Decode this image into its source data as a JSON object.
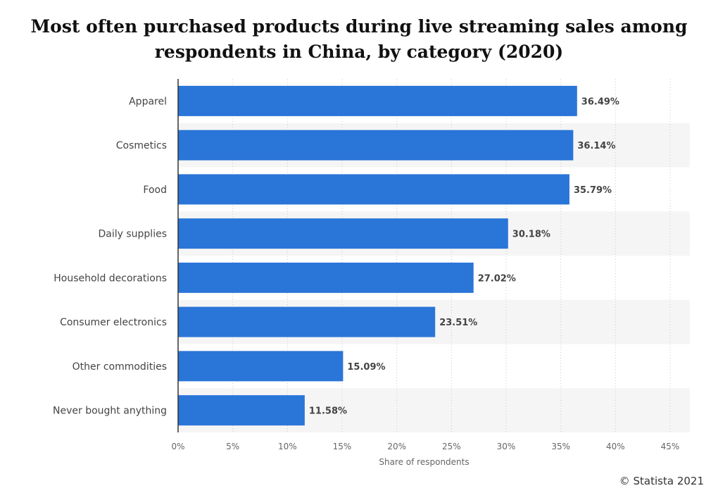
{
  "chart_data": {
    "type": "bar",
    "orientation": "horizontal",
    "title": "Most often purchased products during live streaming sales among respondents in China, by category (2020)",
    "categories": [
      "Apparel",
      "Cosmetics",
      "Food",
      "Daily supplies",
      "Household decorations",
      "Consumer electronics",
      "Other commodities",
      "Never bought anything"
    ],
    "values": [
      36.49,
      36.14,
      35.79,
      30.18,
      27.02,
      23.51,
      15.09,
      11.58
    ],
    "value_labels": [
      "36.49%",
      "36.14%",
      "35.79%",
      "30.18%",
      "27.02%",
      "23.51%",
      "15.09%",
      "11.58%"
    ],
    "xlabel": "Share of respondents",
    "ylabel": "",
    "xlim": [
      0,
      45
    ],
    "x_ticks": [
      0,
      5,
      10,
      15,
      20,
      25,
      30,
      35,
      40,
      45
    ],
    "x_tick_labels": [
      "0%",
      "5%",
      "10%",
      "15%",
      "20%",
      "25%",
      "30%",
      "35%",
      "40%",
      "45%"
    ],
    "grid": true,
    "bar_color": "#2a75d8",
    "band_color": "#f5f5f5"
  },
  "copyright": "© Statista 2021"
}
